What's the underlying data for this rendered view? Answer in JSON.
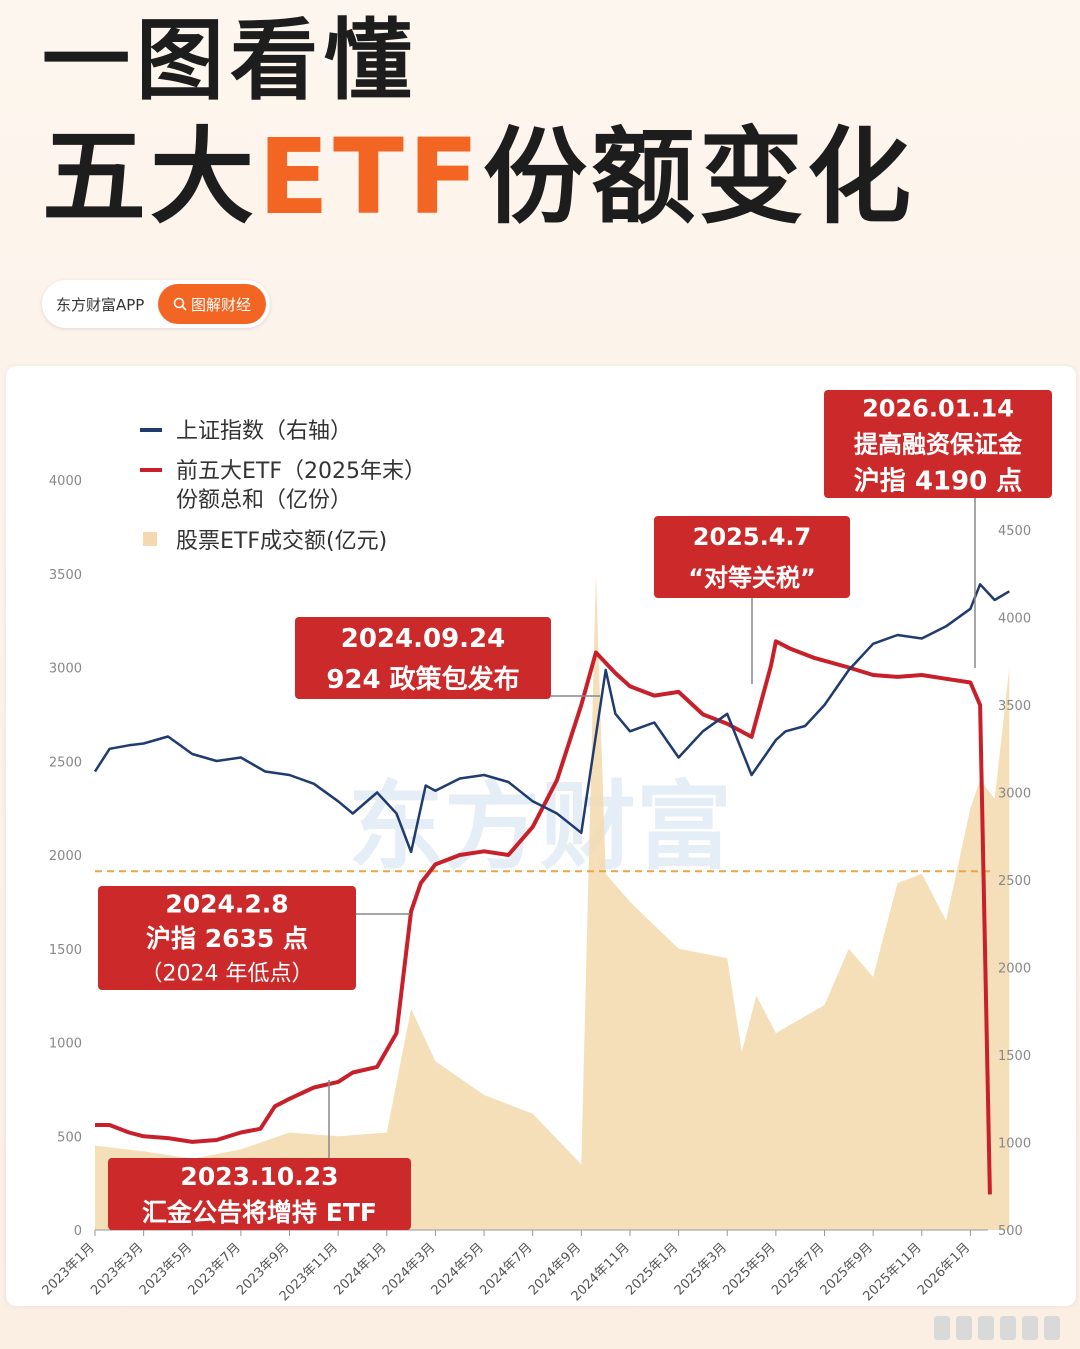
{
  "header": {
    "title_line1": "一图看懂",
    "title_pre": "五大",
    "title_highlight": "ETF",
    "title_post": "份额变化",
    "brand_name": "东方财富APP",
    "brand_tag": "图解财经",
    "watermark": "东方财富"
  },
  "colors": {
    "index_line": "#1f3b6f",
    "etf_line": "#c8202a",
    "volume_area": "#f3d9ad",
    "accent": "#f26522",
    "callout_bg": "#cc2a2a"
  },
  "chart_data": {
    "type": "line",
    "x_ticks": [
      "2023年1月",
      "2023年3月",
      "2023年5月",
      "2023年7月",
      "2023年9月",
      "2023年11月",
      "2024年1月",
      "2024年3月",
      "2024年5月",
      "2024年7月",
      "2024年9月",
      "2024年11月",
      "2025年1月",
      "2025年3月",
      "2025年5月",
      "2025年7月",
      "2025年9月",
      "2025年11月",
      "2026年1月"
    ],
    "left_axis": {
      "ticks": [
        0,
        500,
        1000,
        1500,
        2000,
        2500,
        3000,
        3500,
        4000
      ],
      "ylim": [
        0,
        4000
      ]
    },
    "right_axis": {
      "ticks": [
        500,
        1000,
        1500,
        2000,
        2500,
        3000,
        3500,
        4000,
        4500
      ],
      "ylim": [
        500,
        4500
      ]
    },
    "legend": [
      {
        "name": "上证指数（右轴）",
        "type": "line"
      },
      {
        "name": "前五大ETF（2025年末）\n份额总和（亿份）",
        "type": "line"
      },
      {
        "name": "股票ETF成交额(亿元)",
        "type": "area"
      }
    ],
    "series": [
      {
        "name": "上证指数（右轴）",
        "axis": "right",
        "x": [
          0,
          0.3,
          0.7,
          1.0,
          1.5,
          2.0,
          2.5,
          3.0,
          3.5,
          4.0,
          4.5,
          5.0,
          5.3,
          5.8,
          6.2,
          6.5,
          6.8,
          7.0,
          7.5,
          8.0,
          8.5,
          9.0,
          9.5,
          10.0,
          10.5,
          10.7,
          11.0,
          11.5,
          12.0,
          12.5,
          13.0,
          13.5,
          14.0,
          14.2,
          14.6,
          15.0,
          15.5,
          16.0,
          16.5,
          17.0,
          17.5,
          18.0,
          18.2,
          18.5,
          18.8
        ],
        "y": [
          3120,
          3250,
          3270,
          3280,
          3320,
          3220,
          3180,
          3200,
          3120,
          3100,
          3050,
          2950,
          2880,
          3000,
          2880,
          2660,
          3040,
          3010,
          3080,
          3100,
          3060,
          2950,
          2880,
          2770,
          3700,
          3450,
          3350,
          3400,
          3200,
          3350,
          3450,
          3100,
          3300,
          3350,
          3380,
          3500,
          3700,
          3850,
          3900,
          3880,
          3950,
          4050,
          4190,
          4100,
          4150
        ]
      },
      {
        "name": "前五大ETF（2025年末）份额总和（亿份）",
        "axis": "left",
        "x": [
          0,
          0.3,
          0.7,
          1.0,
          1.5,
          2.0,
          2.5,
          3.0,
          3.4,
          3.7,
          4.0,
          4.5,
          5.0,
          5.3,
          5.8,
          6.2,
          6.5,
          6.7,
          7.0,
          7.5,
          8.0,
          8.5,
          9.0,
          9.5,
          10.0,
          10.3,
          10.7,
          11.0,
          11.5,
          12.0,
          12.5,
          13.0,
          13.5,
          13.9,
          14.0,
          14.3,
          14.8,
          15.5,
          16.0,
          16.5,
          17.0,
          17.5,
          18.0,
          18.2,
          18.3,
          18.4
        ],
        "y": [
          560,
          560,
          520,
          500,
          490,
          470,
          480,
          520,
          540,
          660,
          700,
          760,
          790,
          840,
          870,
          1050,
          1700,
          1850,
          1950,
          2000,
          2020,
          2000,
          2150,
          2400,
          2800,
          3080,
          2970,
          2900,
          2850,
          2870,
          2750,
          2700,
          2630,
          3010,
          3140,
          3100,
          3050,
          3000,
          2960,
          2950,
          2960,
          2940,
          2920,
          2800,
          1500,
          190
        ]
      },
      {
        "name": "股票ETF成交额(亿元)",
        "axis": "left",
        "x": [
          0,
          1,
          2,
          3,
          4,
          5,
          6,
          6.5,
          7,
          8,
          9,
          10,
          10.3,
          10.5,
          11,
          12,
          13,
          13.3,
          13.6,
          14,
          15,
          15.5,
          16,
          16.5,
          17,
          17.5,
          18,
          18.2,
          18.5,
          18.8
        ],
        "y": [
          450,
          420,
          380,
          430,
          520,
          500,
          520,
          1180,
          900,
          720,
          620,
          350,
          3500,
          1900,
          1750,
          1500,
          1450,
          950,
          1250,
          1050,
          1200,
          1500,
          1350,
          1850,
          1900,
          1650,
          2250,
          2400,
          2300,
          3000
        ]
      }
    ],
    "baseline_right": 2550,
    "annotations": [
      {
        "lines": [
          "2026.01.14",
          "提高融资保证金",
          "沪指 4190 点"
        ]
      },
      {
        "lines": [
          "2025.4.7",
          "“对等关税”"
        ]
      },
      {
        "lines": [
          "2024.09.24",
          "924 政策包发布"
        ]
      },
      {
        "lines": [
          "2024.2.8",
          "沪指 2635 点",
          "（2024 年低点）"
        ]
      },
      {
        "lines": [
          "2023.10.23",
          "汇金公告将增持 ETF"
        ]
      }
    ]
  }
}
